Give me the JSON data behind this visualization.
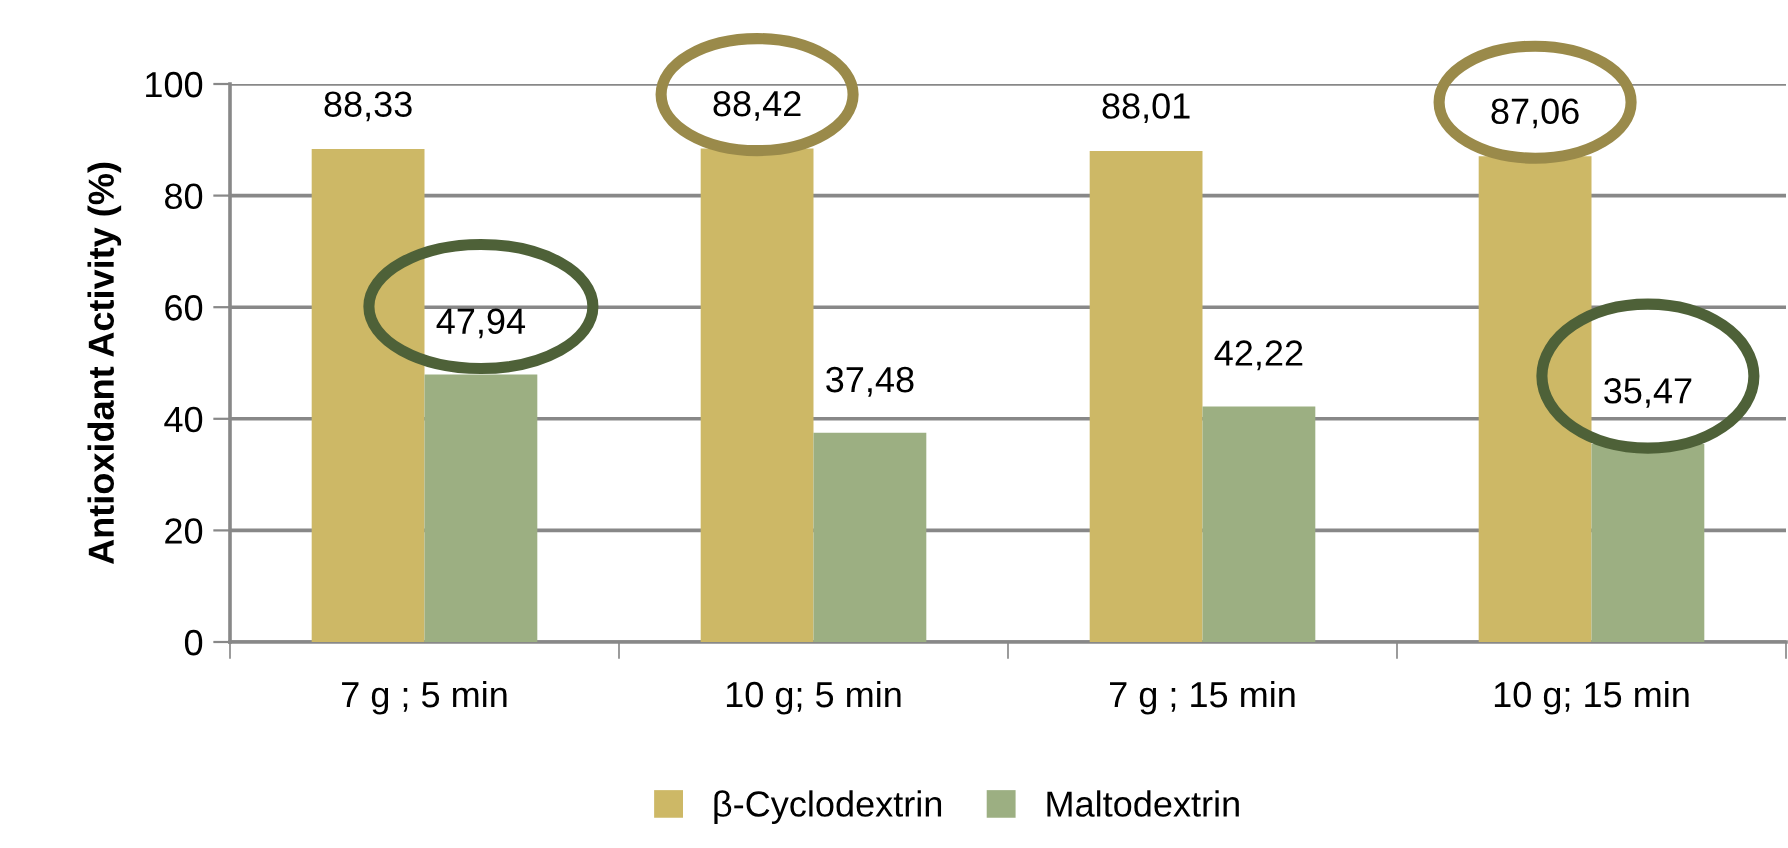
{
  "chart_data": {
    "type": "bar",
    "ylabel": "Antioxidant Activity (%)",
    "categories": [
      "7 g ; 5 min",
      "10 g; 5 min",
      "7 g ; 15 min",
      "10 g; 15 min"
    ],
    "series": [
      {
        "name": "β-Cyclodextrin",
        "color": "#cdb866",
        "values": [
          88.33,
          88.42,
          88.01,
          87.06
        ],
        "value_labels": [
          "88,33",
          "88,42",
          "88,01",
          "87,06"
        ]
      },
      {
        "name": "Maltodextrin",
        "color": "#9caf82",
        "values": [
          47.94,
          37.48,
          42.22,
          35.47
        ],
        "value_labels": [
          "47,94",
          "37,48",
          "42,22",
          "35,47"
        ]
      }
    ],
    "ylim": [
      0,
      100
    ],
    "yticks": [
      0,
      20,
      40,
      60,
      80,
      100
    ],
    "grid": "y",
    "legend": "bottom"
  }
}
